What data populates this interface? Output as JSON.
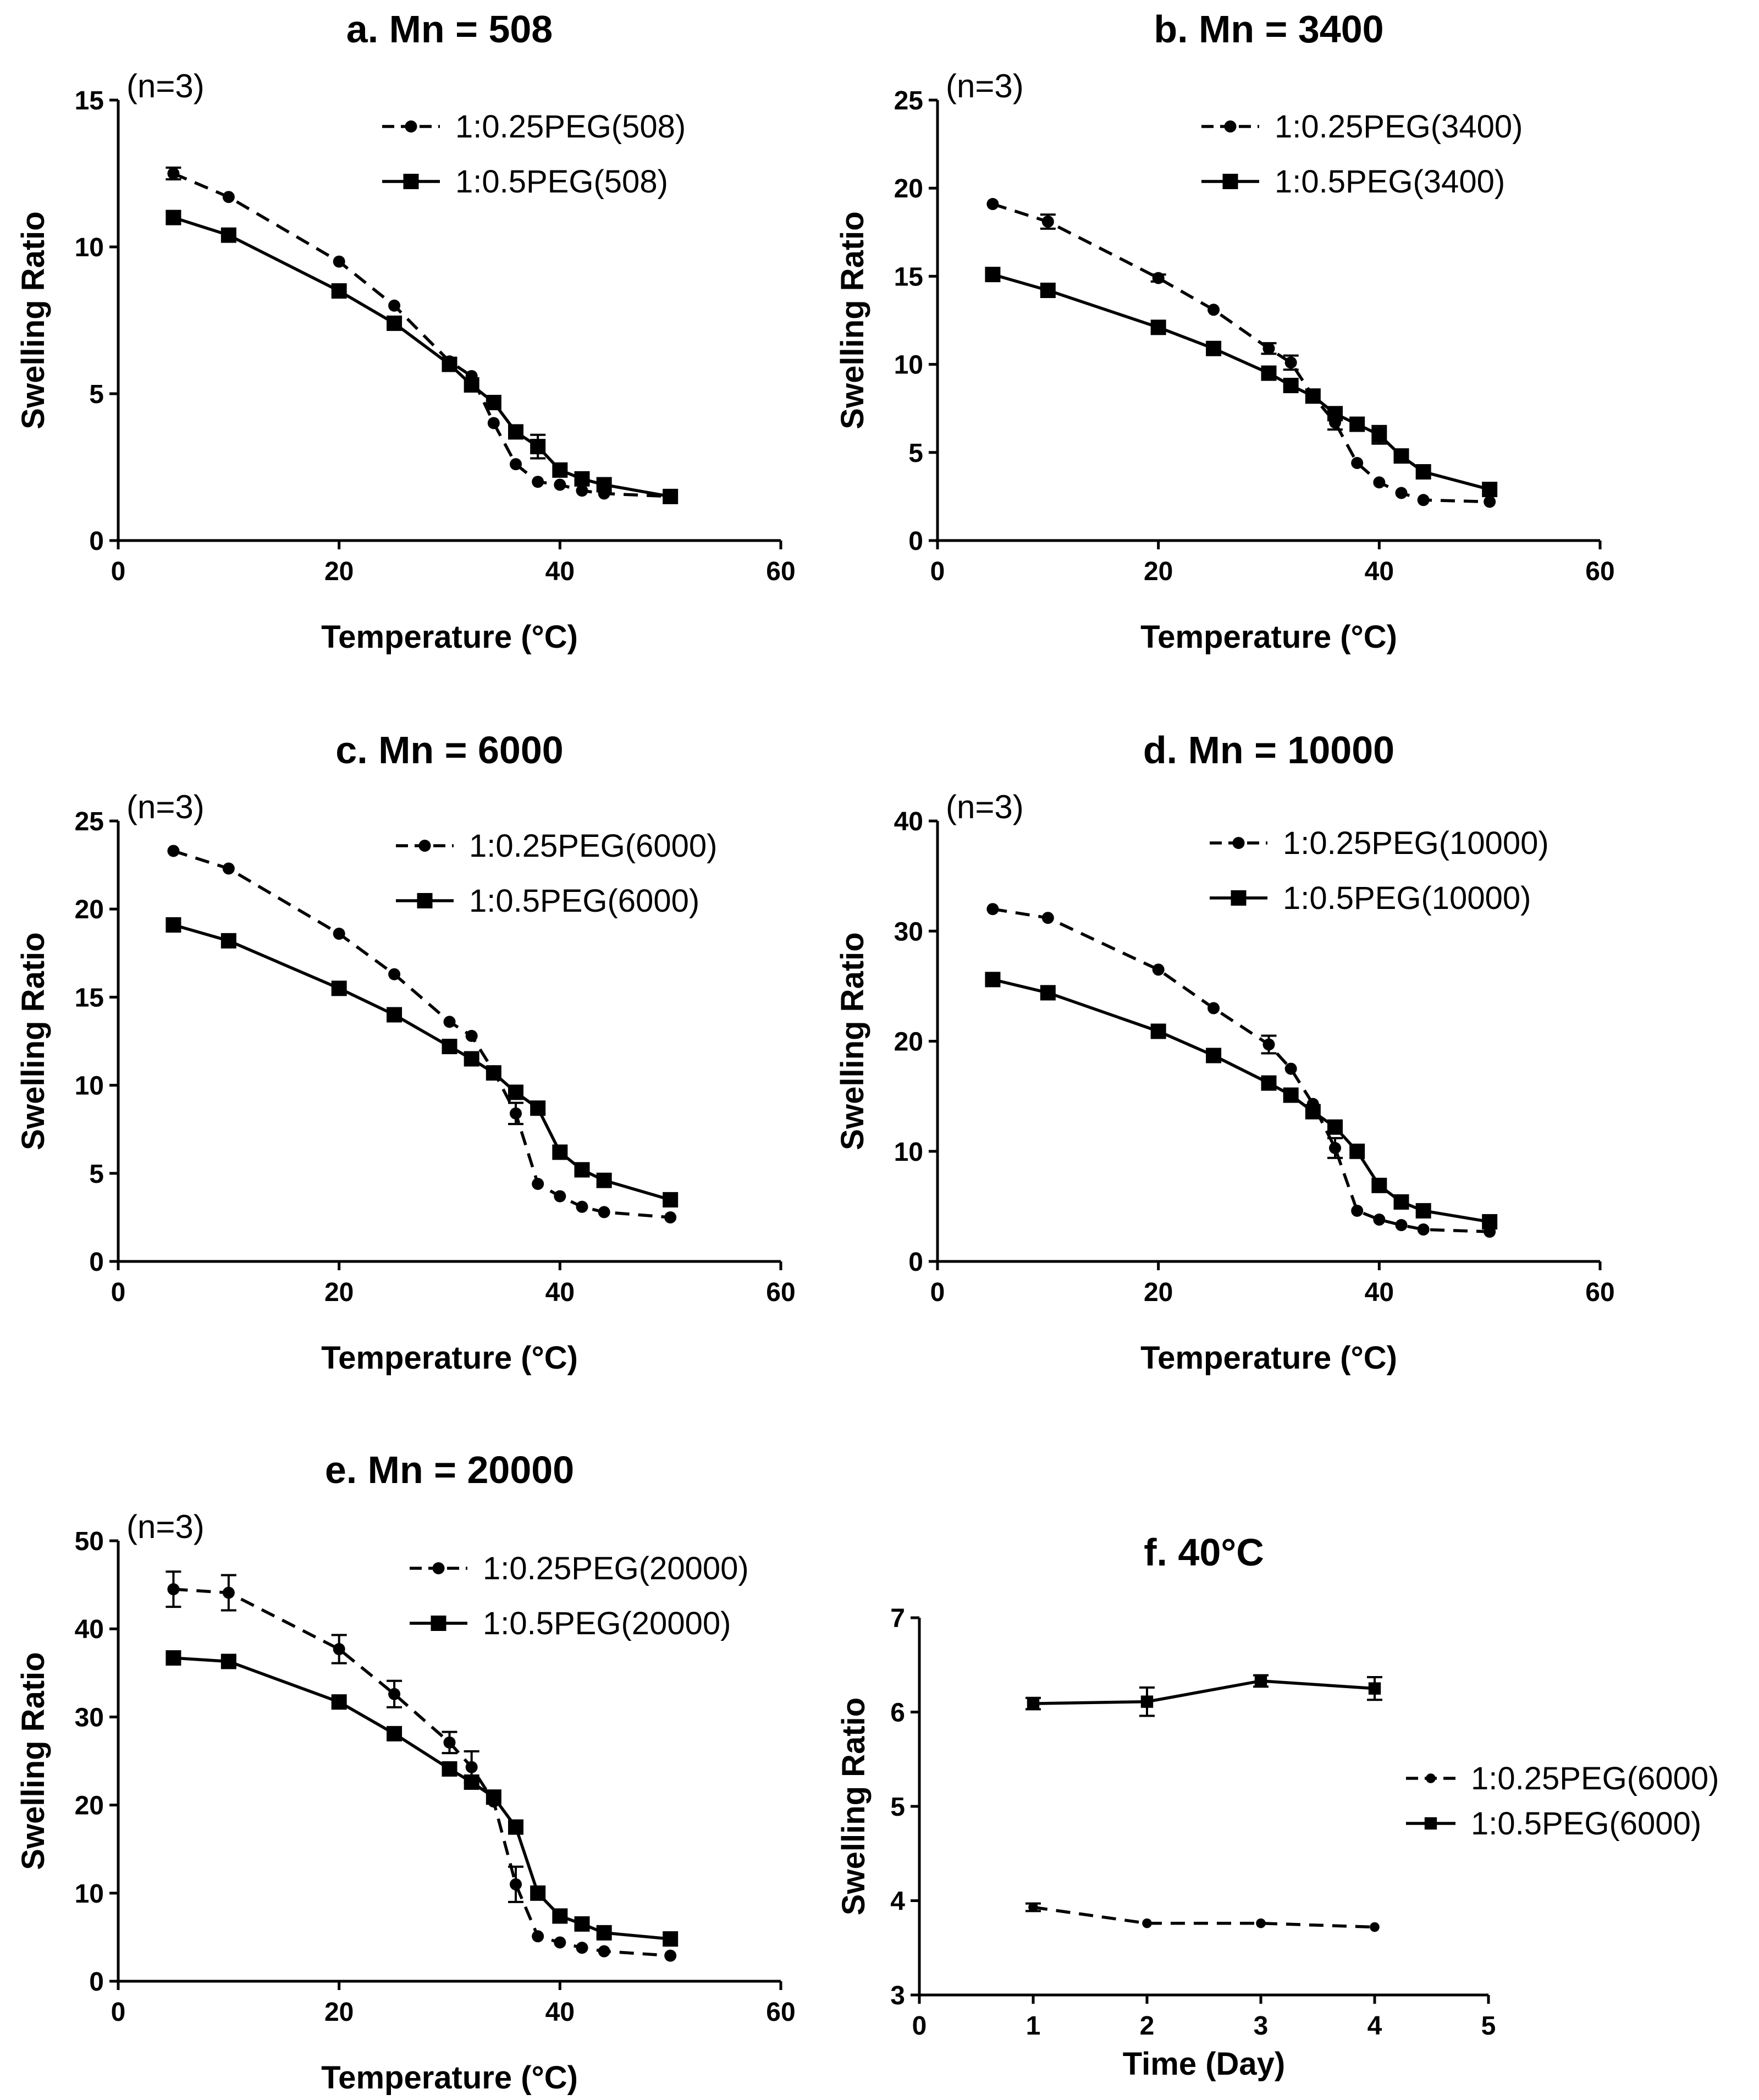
{
  "chart_data": [
    {
      "id": "a",
      "type": "line",
      "title": "a. Mn = 508",
      "xlabel": "Temperature (°C)",
      "ylabel": "Swelling Ratio",
      "annotation": "(n=3)",
      "xlim": [
        0,
        60
      ],
      "ylim": [
        0,
        15
      ],
      "xticks": [
        0,
        20,
        40,
        60
      ],
      "yticks": [
        0,
        5,
        10,
        15
      ],
      "legend_position": "top-right",
      "series": [
        {
          "name": "1:0.25PEG(508)",
          "style": "dashed",
          "marker": "circle",
          "x": [
            5,
            10,
            20,
            25,
            30,
            32,
            34,
            36,
            38,
            40,
            42,
            44,
            50
          ],
          "y": [
            12.5,
            11.7,
            9.5,
            8.0,
            6.1,
            5.6,
            4.0,
            2.6,
            2.0,
            1.9,
            1.7,
            1.6,
            1.5
          ],
          "err": [
            0.2,
            0,
            0,
            0,
            0,
            0,
            0,
            0,
            0,
            0,
            0,
            0,
            0
          ]
        },
        {
          "name": "1:0.5PEG(508)",
          "style": "solid",
          "marker": "square",
          "x": [
            5,
            10,
            20,
            25,
            30,
            32,
            34,
            36,
            38,
            40,
            42,
            44,
            50
          ],
          "y": [
            11.0,
            10.4,
            8.5,
            7.4,
            6.0,
            5.3,
            4.7,
            3.7,
            3.2,
            2.4,
            2.1,
            1.9,
            1.5
          ],
          "err": [
            0.2,
            0,
            0,
            0,
            0,
            0,
            0,
            0,
            0.4,
            0,
            0,
            0,
            0
          ]
        }
      ]
    },
    {
      "id": "b",
      "type": "line",
      "title": "b. Mn = 3400",
      "xlabel": "Temperature (°C)",
      "ylabel": "Swelling Ratio",
      "annotation": "(n=3)",
      "xlim": [
        0,
        60
      ],
      "ylim": [
        0,
        25
      ],
      "xticks": [
        0,
        20,
        40,
        60
      ],
      "yticks": [
        0,
        5,
        10,
        15,
        20,
        25
      ],
      "legend_position": "top-right",
      "series": [
        {
          "name": "1:0.25PEG(3400)",
          "style": "dashed",
          "marker": "circle",
          "x": [
            5,
            10,
            20,
            25,
            30,
            32,
            34,
            36,
            38,
            40,
            42,
            44,
            50
          ],
          "y": [
            19.1,
            18.1,
            14.9,
            13.1,
            10.9,
            10.1,
            8.2,
            6.7,
            4.4,
            3.3,
            2.7,
            2.3,
            2.2
          ],
          "err": [
            0,
            0.4,
            0.2,
            0,
            0.3,
            0.4,
            0,
            0.4,
            0,
            0,
            0,
            0,
            0
          ]
        },
        {
          "name": "1:0.5PEG(3400)",
          "style": "solid",
          "marker": "square",
          "x": [
            5,
            10,
            20,
            25,
            30,
            32,
            34,
            36,
            38,
            40,
            42,
            44,
            50
          ],
          "y": [
            15.1,
            14.2,
            12.1,
            10.9,
            9.5,
            8.8,
            8.2,
            7.2,
            6.6,
            6.0,
            4.8,
            3.9,
            2.9
          ],
          "err": [
            0,
            0,
            0,
            0,
            0,
            0,
            0,
            0,
            0,
            0.5,
            0,
            0,
            0
          ]
        }
      ]
    },
    {
      "id": "c",
      "type": "line",
      "title": "c. Mn = 6000",
      "xlabel": "Temperature (°C)",
      "ylabel": "Swelling Ratio",
      "annotation": "(n=3)",
      "xlim": [
        0,
        60
      ],
      "ylim": [
        0,
        25
      ],
      "xticks": [
        0,
        20,
        40,
        60
      ],
      "yticks": [
        0,
        5,
        10,
        15,
        20,
        25
      ],
      "legend_position": "top-right",
      "series": [
        {
          "name": "1:0.25PEG(6000)",
          "style": "dashed",
          "marker": "circle",
          "x": [
            5,
            10,
            20,
            25,
            30,
            32,
            34,
            36,
            38,
            40,
            42,
            44,
            50
          ],
          "y": [
            23.3,
            22.3,
            18.6,
            16.3,
            13.6,
            12.8,
            10.8,
            8.4,
            4.4,
            3.7,
            3.1,
            2.8,
            2.5
          ],
          "err": [
            0,
            0,
            0,
            0,
            0,
            0,
            0,
            0.6,
            0,
            0,
            0,
            0,
            0
          ]
        },
        {
          "name": "1:0.5PEG(6000)",
          "style": "solid",
          "marker": "square",
          "x": [
            5,
            10,
            20,
            25,
            30,
            32,
            34,
            36,
            38,
            40,
            42,
            44,
            50
          ],
          "y": [
            19.1,
            18.2,
            15.5,
            14.0,
            12.2,
            11.5,
            10.7,
            9.6,
            8.7,
            6.2,
            5.2,
            4.6,
            3.5
          ],
          "err": [
            0,
            0,
            0,
            0,
            0,
            0,
            0,
            0,
            0,
            0,
            0,
            0,
            0
          ]
        }
      ]
    },
    {
      "id": "d",
      "type": "line",
      "title": "d. Mn = 10000",
      "xlabel": "Temperature (°C)",
      "ylabel": "Swelling Ratio",
      "annotation": "(n=3)",
      "xlim": [
        0,
        60
      ],
      "ylim": [
        0,
        40
      ],
      "xticks": [
        0,
        20,
        40,
        60
      ],
      "yticks": [
        0,
        10,
        20,
        30,
        40
      ],
      "legend_position": "top-right",
      "series": [
        {
          "name": "1:0.25PEG(10000)",
          "style": "dashed",
          "marker": "circle",
          "x": [
            5,
            10,
            20,
            25,
            30,
            32,
            34,
            36,
            38,
            40,
            42,
            44,
            50
          ],
          "y": [
            32.0,
            31.2,
            26.5,
            23.0,
            19.7,
            17.5,
            14.3,
            10.3,
            4.6,
            3.8,
            3.3,
            2.9,
            2.7
          ],
          "err": [
            0,
            0,
            0,
            0,
            0.8,
            0,
            0,
            0.9,
            0,
            0,
            0,
            0,
            0
          ]
        },
        {
          "name": "1:0.5PEG(10000)",
          "style": "solid",
          "marker": "square",
          "x": [
            5,
            10,
            20,
            25,
            30,
            32,
            34,
            36,
            38,
            40,
            42,
            44,
            50
          ],
          "y": [
            25.6,
            24.4,
            20.9,
            18.7,
            16.2,
            15.1,
            13.6,
            12.2,
            10.0,
            6.9,
            5.4,
            4.6,
            3.6
          ],
          "err": [
            0,
            0,
            0,
            0,
            0,
            0,
            0,
            0,
            0,
            0,
            0,
            0,
            0
          ]
        }
      ]
    },
    {
      "id": "e",
      "type": "line",
      "title": "e. Mn = 20000",
      "xlabel": "Temperature (°C)",
      "ylabel": "Swelling Ratio",
      "annotation": "(n=3)",
      "xlim": [
        0,
        60
      ],
      "ylim": [
        0,
        50
      ],
      "xticks": [
        0,
        20,
        40,
        60
      ],
      "yticks": [
        0,
        10,
        20,
        30,
        40,
        50
      ],
      "legend_position": "top-right",
      "series": [
        {
          "name": "1:0.25PEG(20000)",
          "style": "dashed",
          "marker": "circle",
          "x": [
            5,
            10,
            20,
            25,
            30,
            32,
            34,
            36,
            38,
            40,
            42,
            44,
            50
          ],
          "y": [
            44.5,
            44.1,
            37.7,
            32.6,
            27.1,
            24.3,
            20.4,
            11.0,
            5.1,
            4.4,
            3.8,
            3.4,
            2.9
          ],
          "err": [
            2.0,
            2.0,
            1.6,
            1.5,
            1.2,
            1.8,
            0,
            2.0,
            0,
            0,
            0,
            0,
            0
          ]
        },
        {
          "name": "1:0.5PEG(20000)",
          "style": "solid",
          "marker": "square",
          "x": [
            5,
            10,
            20,
            25,
            30,
            32,
            34,
            36,
            38,
            40,
            42,
            44,
            50
          ],
          "y": [
            36.7,
            36.3,
            31.7,
            28.1,
            24.1,
            22.6,
            20.9,
            17.5,
            10.0,
            7.4,
            6.5,
            5.5,
            4.8
          ],
          "err": [
            0,
            0,
            0,
            0,
            0,
            0,
            0,
            0,
            0,
            0,
            0,
            0,
            0
          ]
        }
      ]
    },
    {
      "id": "f",
      "type": "line",
      "title": "f. 40°C",
      "xlabel": "Time (Day)",
      "ylabel": "Swelling Ratio",
      "annotation": "",
      "xlim": [
        0,
        5
      ],
      "ylim": [
        3,
        7
      ],
      "xticks": [
        0,
        1,
        2,
        3,
        4,
        5
      ],
      "yticks": [
        3,
        4,
        5,
        6,
        7
      ],
      "legend_position": "right",
      "series": [
        {
          "name": "1:0.25PEG(6000)",
          "style": "dashed",
          "marker": "circle",
          "x": [
            1,
            2,
            3,
            4
          ],
          "y": [
            3.93,
            3.76,
            3.76,
            3.72
          ],
          "err": [
            0.04,
            0,
            0,
            0
          ]
        },
        {
          "name": "1:0.5PEG(6000)",
          "style": "solid",
          "marker": "square",
          "x": [
            1,
            2,
            3,
            4
          ],
          "y": [
            6.09,
            6.11,
            6.33,
            6.25
          ],
          "err": [
            0.06,
            0.15,
            0.06,
            0.12
          ]
        }
      ]
    }
  ]
}
